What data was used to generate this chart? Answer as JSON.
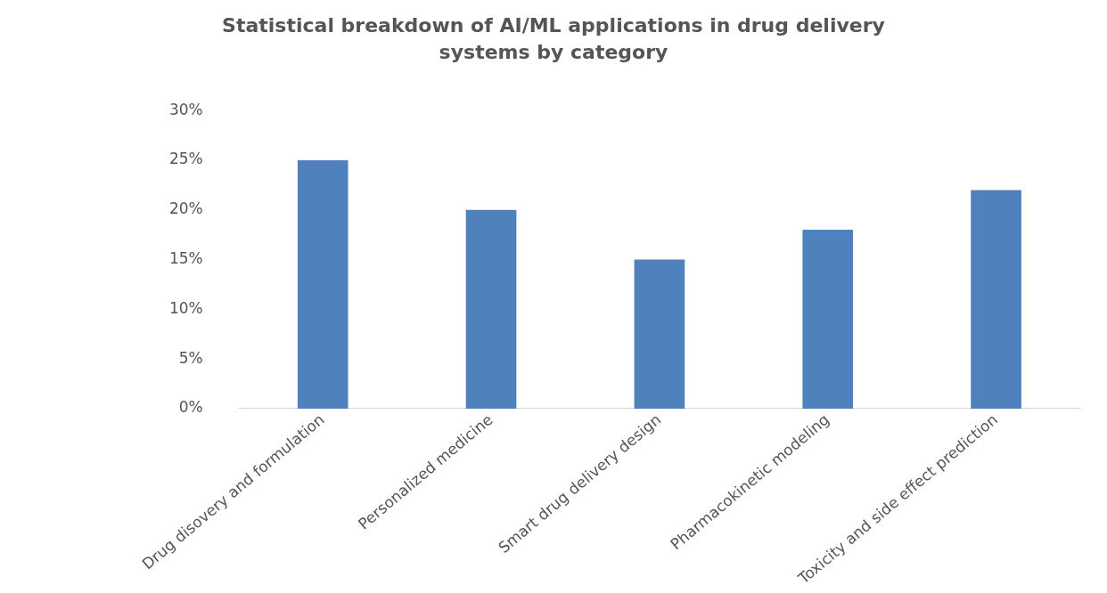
{
  "chart_data": {
    "type": "bar",
    "title": "Statistical breakdown of AI/ML applications in drug delivery systems by category",
    "categories": [
      "Drug disovery and formulation",
      "Personalized medicine",
      "Smart drug delivery design",
      "Pharmacokinetic modeling",
      "Toxicity and side effect prediction"
    ],
    "values": [
      25,
      20,
      15,
      18,
      22
    ],
    "color": "#4f81bd",
    "ylim": [
      0,
      30
    ],
    "yticks": [
      {
        "value": 0,
        "label": "0%"
      },
      {
        "value": 5,
        "label": "5%"
      },
      {
        "value": 10,
        "label": "10%"
      },
      {
        "value": 15,
        "label": "15%"
      },
      {
        "value": 20,
        "label": "20%"
      },
      {
        "value": 25,
        "label": "25%"
      },
      {
        "value": 30,
        "label": "30%"
      }
    ],
    "grid": false,
    "legend": false
  }
}
